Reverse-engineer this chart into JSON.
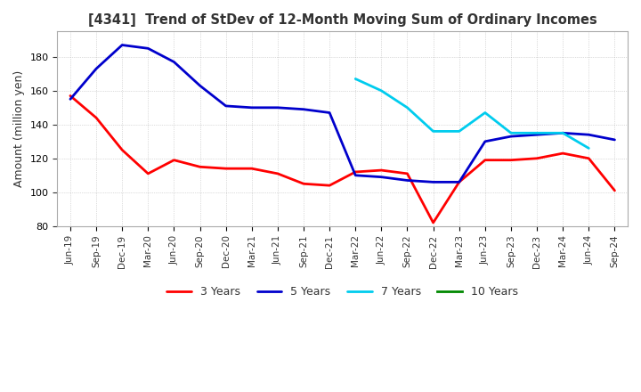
{
  "title": "[4341]  Trend of StDev of 12-Month Moving Sum of Ordinary Incomes",
  "ylabel": "Amount (million yen)",
  "ylim": [
    80,
    195
  ],
  "yticks": [
    80,
    100,
    120,
    140,
    160,
    180
  ],
  "background_color": "#ffffff",
  "plot_bg_color": "#ffffff",
  "grid_color": "#aaaaaa",
  "legend_entries": [
    "3 Years",
    "5 Years",
    "7 Years",
    "10 Years"
  ],
  "legend_colors": [
    "#ff0000",
    "#0000cc",
    "#00ccee",
    "#008800"
  ],
  "dates": [
    "Jun-19",
    "Sep-19",
    "Dec-19",
    "Mar-20",
    "Jun-20",
    "Sep-20",
    "Dec-20",
    "Mar-21",
    "Jun-21",
    "Sep-21",
    "Dec-21",
    "Mar-22",
    "Jun-22",
    "Sep-22",
    "Dec-22",
    "Mar-23",
    "Jun-23",
    "Sep-23",
    "Dec-23",
    "Mar-24",
    "Jun-24",
    "Sep-24"
  ],
  "series_3y": [
    157,
    144,
    125,
    111,
    119,
    115,
    114,
    114,
    111,
    105,
    104,
    112,
    113,
    111,
    82,
    106,
    119,
    119,
    120,
    123,
    120,
    101
  ],
  "series_5y": [
    155,
    173,
    187,
    185,
    177,
    163,
    151,
    150,
    150,
    149,
    147,
    110,
    109,
    107,
    106,
    106,
    130,
    133,
    134,
    135,
    134,
    131
  ],
  "series_7y": [
    null,
    null,
    null,
    null,
    null,
    null,
    null,
    null,
    null,
    null,
    null,
    167,
    160,
    150,
    136,
    136,
    147,
    135,
    135,
    135,
    126,
    null
  ],
  "series_10y": [
    null,
    null,
    null,
    null,
    null,
    null,
    null,
    null,
    null,
    null,
    null,
    null,
    null,
    null,
    null,
    null,
    null,
    null,
    null,
    null,
    null,
    null
  ]
}
